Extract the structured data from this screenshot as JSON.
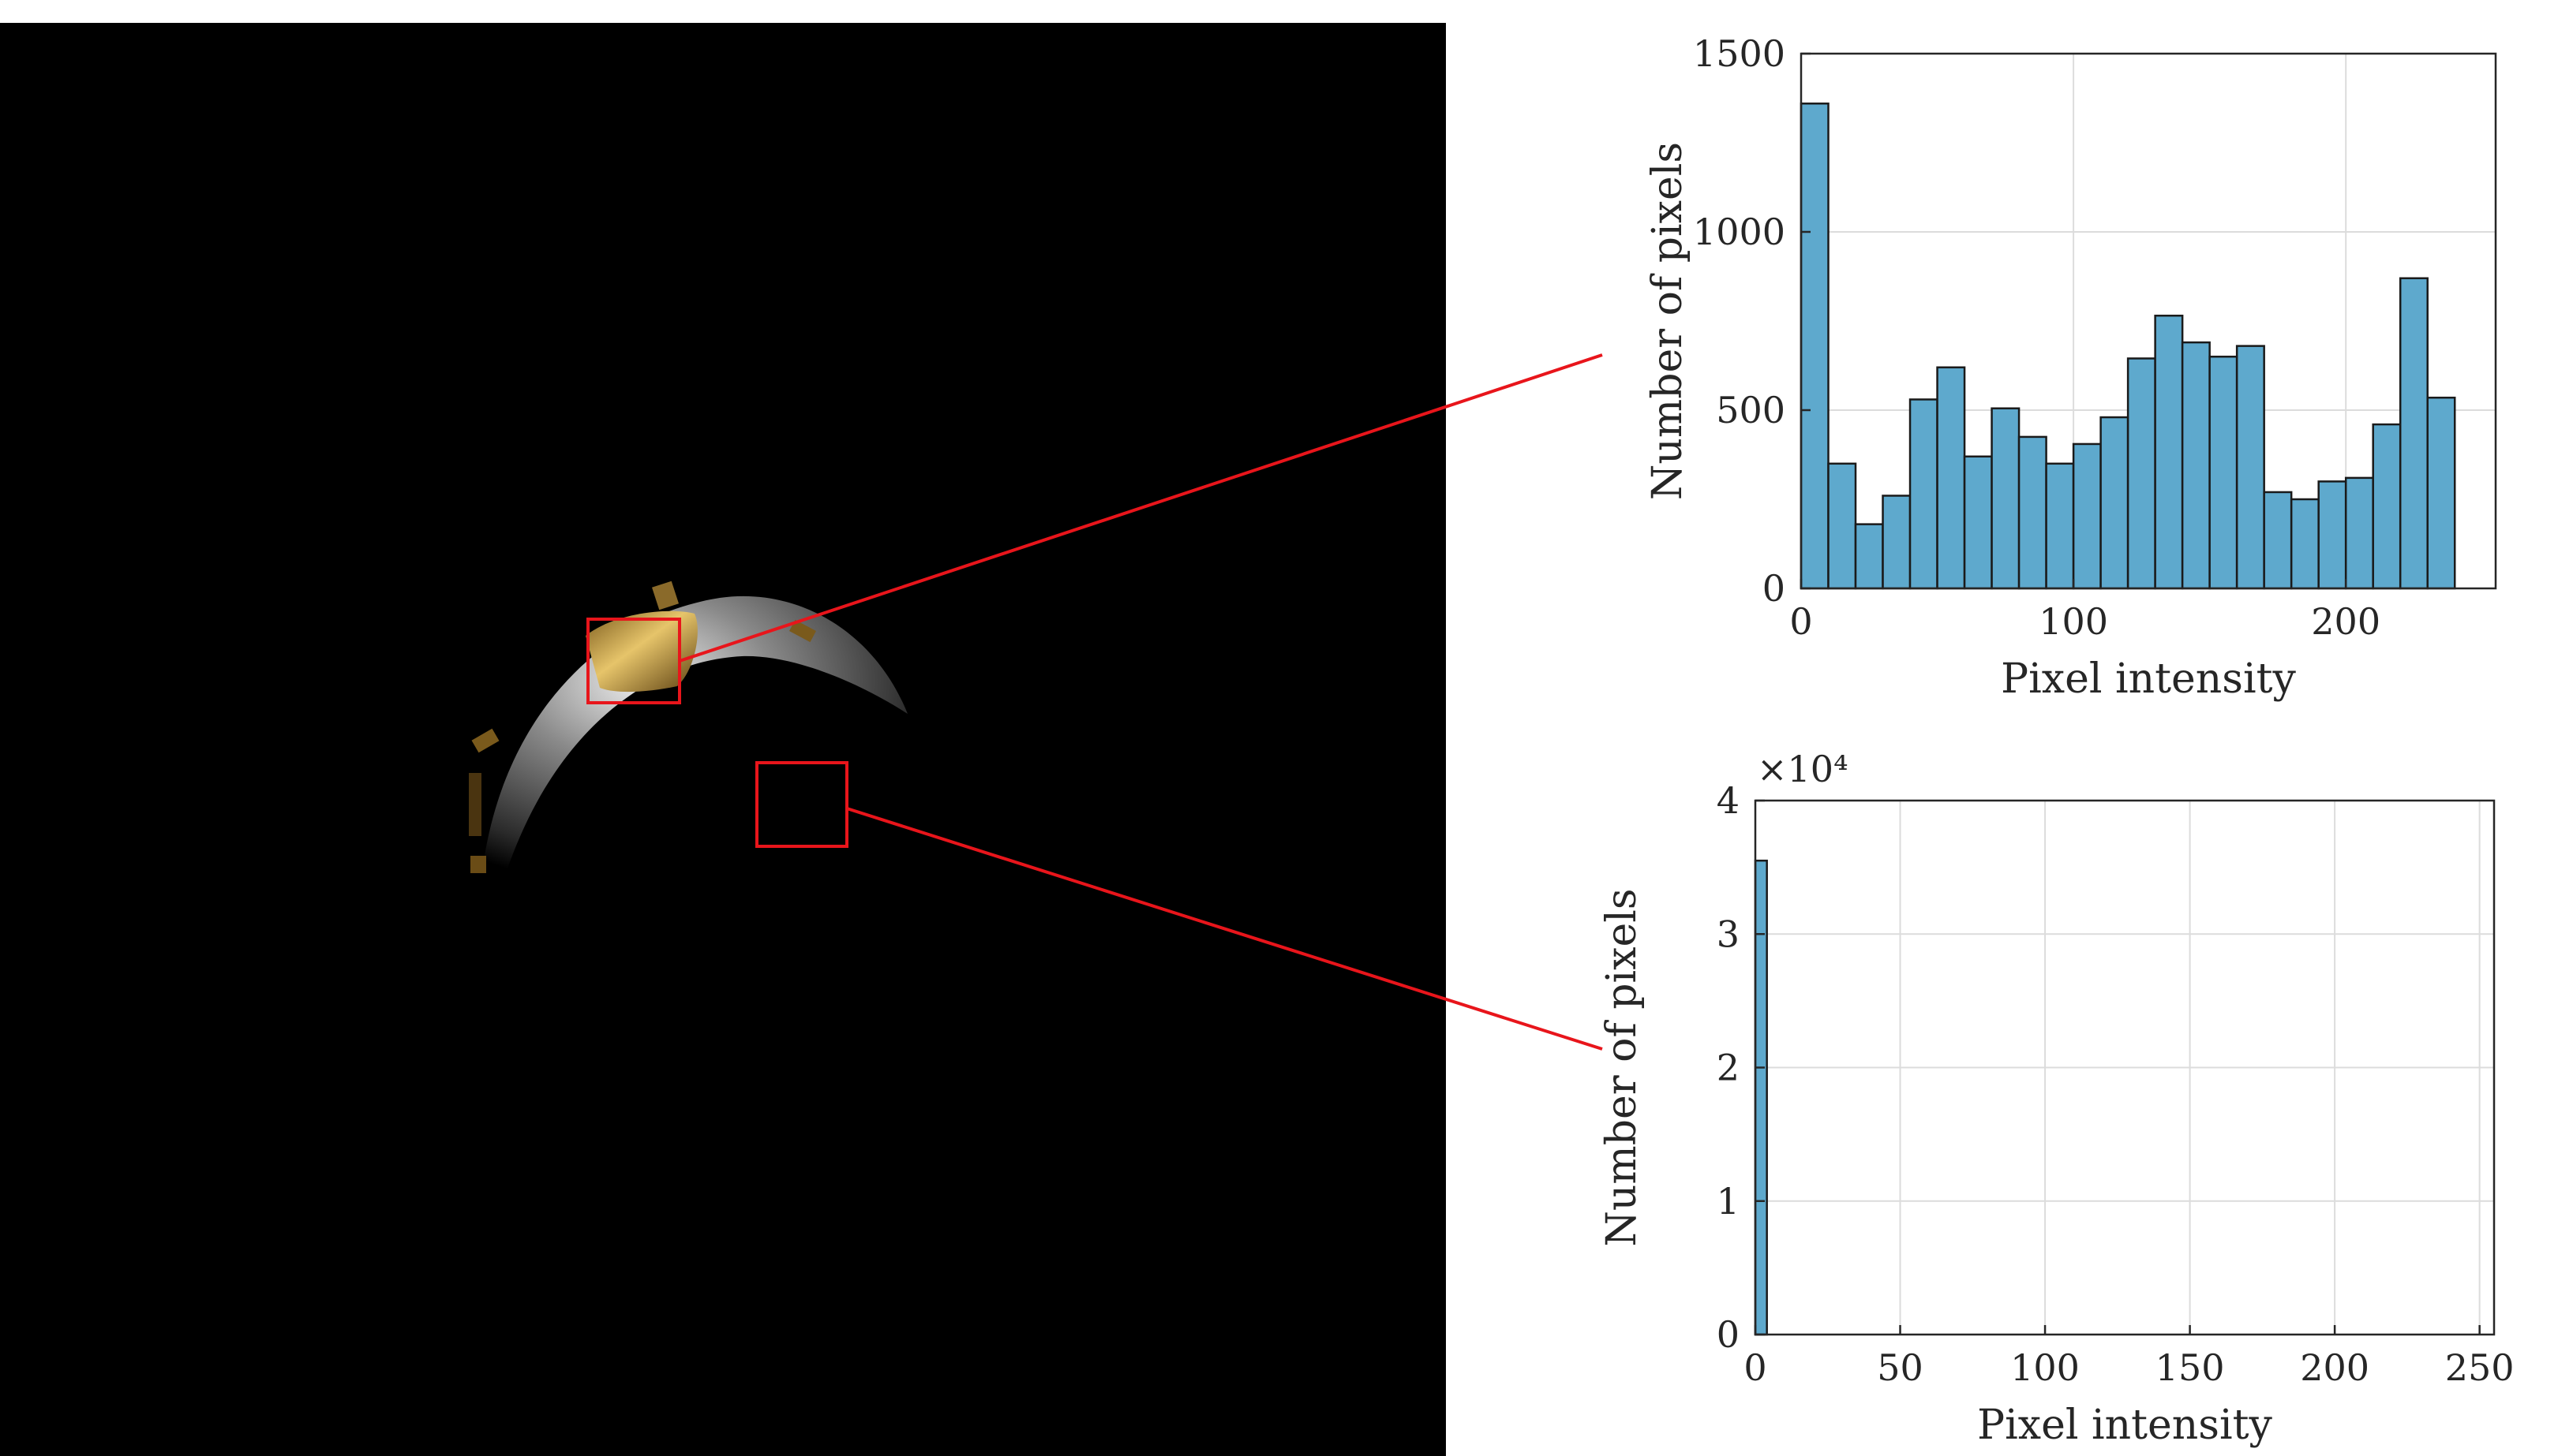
{
  "colors": {
    "bar_fill": "#5ea9cd",
    "highlight": "#e8151b",
    "panel_background": "#000000"
  },
  "chart_data": [
    {
      "type": "bar",
      "bin_width": 10,
      "x": [
        0,
        10,
        20,
        30,
        40,
        50,
        60,
        70,
        80,
        90,
        100,
        110,
        120,
        130,
        140,
        150,
        160,
        170,
        180,
        190,
        200,
        210,
        220,
        230
      ],
      "values": [
        1360,
        350,
        180,
        260,
        530,
        620,
        370,
        505,
        425,
        350,
        405,
        480,
        645,
        765,
        690,
        650,
        680,
        270,
        250,
        300,
        310,
        460,
        870,
        535
      ],
      "xlim": [
        0,
        255
      ],
      "ylim": [
        0,
        1500
      ],
      "xticks": [
        "0",
        "100",
        "200"
      ],
      "yticks": [
        "0",
        "500",
        "1000",
        "1500"
      ],
      "xlabel": "Pixel intensity",
      "ylabel": "Number of pixels",
      "grid": true
    },
    {
      "type": "bar",
      "bin_width": 4,
      "x": [
        0
      ],
      "values": [
        35500
      ],
      "xlim": [
        0,
        255
      ],
      "ylim": [
        0,
        40000
      ],
      "exponent_label": "×10⁴",
      "xticks": [
        "0",
        "50",
        "100",
        "150",
        "200",
        "250"
      ],
      "yticks": [
        "0",
        "1",
        "2",
        "3",
        "4"
      ],
      "xlabel": "Pixel intensity",
      "ylabel": "Number of pixels",
      "grid": true
    }
  ]
}
